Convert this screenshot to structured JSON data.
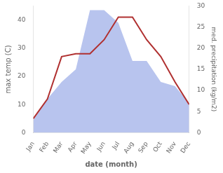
{
  "chart_data": {
    "type": "line",
    "categories": [
      "Jan",
      "Feb",
      "Mar",
      "Apr",
      "May",
      "Jun",
      "Jul",
      "Aug",
      "Sep",
      "Oct",
      "Nov",
      "Dec"
    ],
    "xlabel": "date (month)",
    "ylabel": "max temp (C)",
    "y2label": "med. precipitation (kg/m2)",
    "series": [
      {
        "type": "area",
        "axis": "y2",
        "color": "#b8c4ee",
        "values": [
          3,
          8,
          12,
          15,
          29,
          29,
          26,
          17,
          17,
          12,
          11,
          7
        ]
      },
      {
        "type": "line",
        "color": "#b03030",
        "values": [
          5,
          12,
          27,
          28,
          28,
          33,
          41,
          41,
          33,
          27,
          18,
          10
        ]
      }
    ],
    "ylim": [
      0,
      45
    ],
    "yticks": [
      0,
      10,
      20,
      30,
      40
    ],
    "y2lim": [
      0,
      30
    ],
    "y2ticks": [
      0,
      5,
      10,
      15,
      20,
      25,
      30
    ],
    "grid": false
  }
}
